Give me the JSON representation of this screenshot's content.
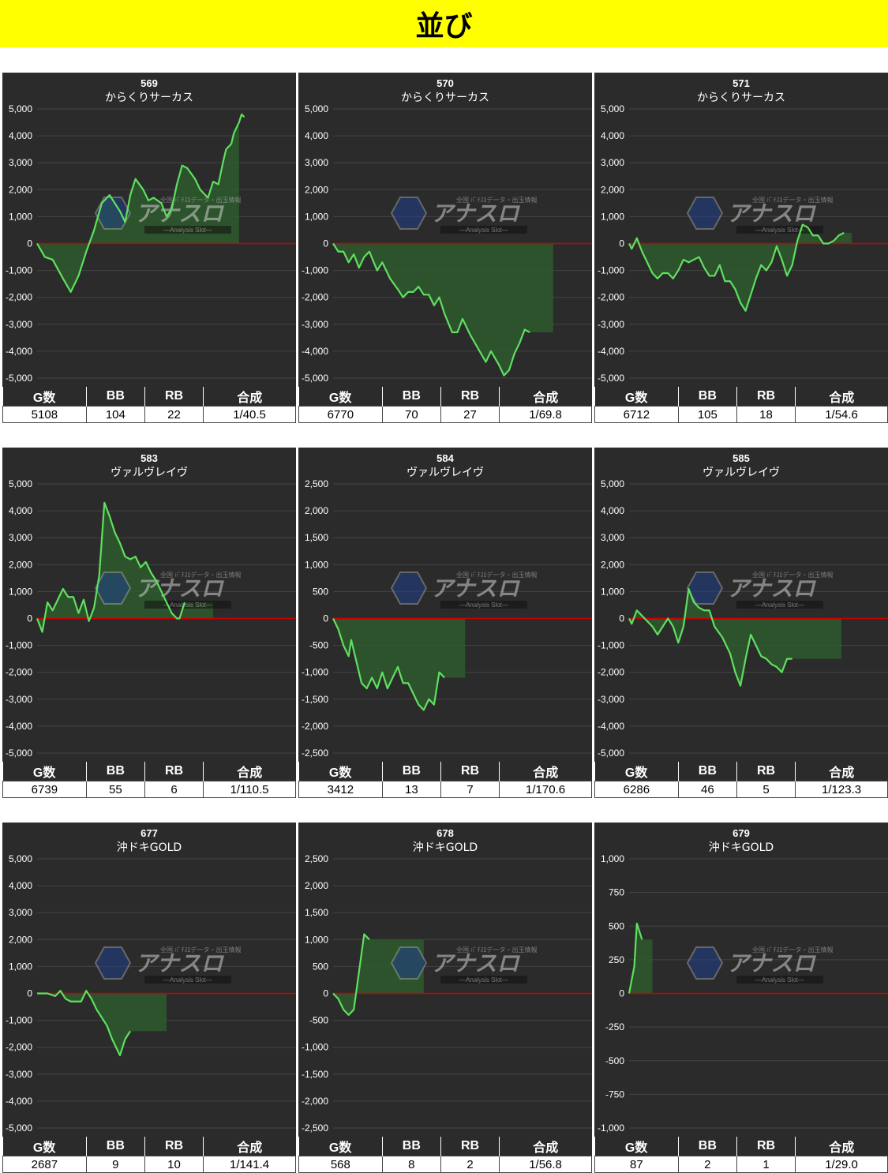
{
  "page": {
    "title": "並び"
  },
  "watermark": {
    "top_text": "全国 ﾊﾟﾁｽﾛデータ・出玉情報",
    "logo_text": "アナスロ",
    "sub_text": "—Analysis Slot—"
  },
  "colors": {
    "line": "#5ee05e",
    "fill": "#2e5a2e",
    "zero_line": "#cc0000",
    "background": "#2b2b2b",
    "grid": "#444444"
  },
  "stat_headers": [
    "G数",
    "BB",
    "RB",
    "合成"
  ],
  "chart_data": [
    {
      "type": "area",
      "machine_no": "569",
      "machine_name": "からくりサーカス",
      "ylim": [
        -5000,
        5000
      ],
      "ticks": [
        5000,
        4000,
        3000,
        2000,
        1000,
        0,
        -1000,
        -2000,
        -3000,
        -4000,
        -5000
      ],
      "tick_labels": [
        "5,000",
        "4,000",
        "3,000",
        "2,000",
        "1,000",
        "0",
        "-1,000",
        "-2,000",
        "-3,000",
        "-4,000",
        "-5,000"
      ],
      "x_end": 0.78,
      "series": [
        [
          0,
          0
        ],
        [
          0.03,
          -500
        ],
        [
          0.06,
          -600
        ],
        [
          0.1,
          -1300
        ],
        [
          0.13,
          -1800
        ],
        [
          0.16,
          -1200
        ],
        [
          0.19,
          -300
        ],
        [
          0.22,
          500
        ],
        [
          0.25,
          1500
        ],
        [
          0.28,
          1800
        ],
        [
          0.3,
          1500
        ],
        [
          0.32,
          1200
        ],
        [
          0.34,
          800
        ],
        [
          0.36,
          1800
        ],
        [
          0.38,
          2400
        ],
        [
          0.41,
          2000
        ],
        [
          0.43,
          1600
        ],
        [
          0.45,
          1700
        ],
        [
          0.48,
          1500
        ],
        [
          0.5,
          1000
        ],
        [
          0.52,
          1300
        ],
        [
          0.54,
          2200
        ],
        [
          0.56,
          2900
        ],
        [
          0.58,
          2800
        ],
        [
          0.61,
          2400
        ],
        [
          0.63,
          2000
        ],
        [
          0.65,
          1800
        ],
        [
          0.66,
          1700
        ],
        [
          0.68,
          2300
        ],
        [
          0.7,
          2200
        ],
        [
          0.72,
          3100
        ],
        [
          0.73,
          3500
        ],
        [
          0.75,
          3700
        ],
        [
          0.76,
          4100
        ],
        [
          0.78,
          4500
        ],
        [
          0.79,
          4800
        ],
        [
          0.8,
          4700
        ]
      ],
      "stats": {
        "g": "5108",
        "bb": "104",
        "rb": "22",
        "gosei": "1/40.5"
      }
    },
    {
      "type": "area",
      "machine_no": "570",
      "machine_name": "からくりサーカス",
      "ylim": [
        -5000,
        5000
      ],
      "ticks": [
        5000,
        4000,
        3000,
        2000,
        1000,
        0,
        -1000,
        -2000,
        -3000,
        -4000,
        -5000
      ],
      "tick_labels": [
        "5,000",
        "4,000",
        "3,000",
        "2,000",
        "1,000",
        "0",
        "-1,000",
        "-2,000",
        "-3,000",
        "-4,000",
        "-5,000"
      ],
      "x_end": 0.85,
      "series": [
        [
          0,
          0
        ],
        [
          0.02,
          -300
        ],
        [
          0.04,
          -300
        ],
        [
          0.06,
          -700
        ],
        [
          0.08,
          -400
        ],
        [
          0.1,
          -900
        ],
        [
          0.12,
          -500
        ],
        [
          0.14,
          -300
        ],
        [
          0.17,
          -1000
        ],
        [
          0.19,
          -700
        ],
        [
          0.22,
          -1300
        ],
        [
          0.25,
          -1700
        ],
        [
          0.27,
          -2000
        ],
        [
          0.29,
          -1800
        ],
        [
          0.31,
          -1800
        ],
        [
          0.33,
          -1600
        ],
        [
          0.35,
          -1900
        ],
        [
          0.37,
          -1900
        ],
        [
          0.39,
          -2300
        ],
        [
          0.41,
          -2000
        ],
        [
          0.43,
          -2600
        ],
        [
          0.46,
          -3300
        ],
        [
          0.48,
          -3300
        ],
        [
          0.5,
          -2800
        ],
        [
          0.53,
          -3400
        ],
        [
          0.56,
          -3900
        ],
        [
          0.59,
          -4400
        ],
        [
          0.61,
          -4000
        ],
        [
          0.64,
          -4500
        ],
        [
          0.66,
          -4900
        ],
        [
          0.68,
          -4700
        ],
        [
          0.7,
          -4100
        ],
        [
          0.72,
          -3700
        ],
        [
          0.74,
          -3200
        ],
        [
          0.76,
          -3300
        ]
      ],
      "stats": {
        "g": "6770",
        "bb": "70",
        "rb": "27",
        "gosei": "1/69.8"
      }
    },
    {
      "type": "area",
      "machine_no": "571",
      "machine_name": "からくりサーカス",
      "ylim": [
        -5000,
        5000
      ],
      "ticks": [
        5000,
        4000,
        3000,
        2000,
        1000,
        0,
        -1000,
        -2000,
        -3000,
        -4000,
        -5000
      ],
      "tick_labels": [
        "5,000",
        "4,000",
        "3,000",
        "2,000",
        "1,000",
        "0",
        "-1,000",
        "-2,000",
        "-3,000",
        "-4,000",
        "-5,000"
      ],
      "x_end": 0.86,
      "series": [
        [
          0,
          0
        ],
        [
          0.01,
          -200
        ],
        [
          0.03,
          200
        ],
        [
          0.05,
          -300
        ],
        [
          0.07,
          -700
        ],
        [
          0.09,
          -1100
        ],
        [
          0.11,
          -1300
        ],
        [
          0.13,
          -1100
        ],
        [
          0.15,
          -1100
        ],
        [
          0.17,
          -1300
        ],
        [
          0.19,
          -1000
        ],
        [
          0.21,
          -600
        ],
        [
          0.23,
          -700
        ],
        [
          0.25,
          -600
        ],
        [
          0.27,
          -500
        ],
        [
          0.29,
          -900
        ],
        [
          0.31,
          -1200
        ],
        [
          0.33,
          -1200
        ],
        [
          0.35,
          -800
        ],
        [
          0.37,
          -1400
        ],
        [
          0.39,
          -1400
        ],
        [
          0.41,
          -1700
        ],
        [
          0.43,
          -2200
        ],
        [
          0.45,
          -2500
        ],
        [
          0.47,
          -1900
        ],
        [
          0.49,
          -1300
        ],
        [
          0.51,
          -800
        ],
        [
          0.53,
          -1000
        ],
        [
          0.55,
          -700
        ],
        [
          0.57,
          -100
        ],
        [
          0.59,
          -600
        ],
        [
          0.61,
          -1200
        ],
        [
          0.63,
          -800
        ],
        [
          0.65,
          100
        ],
        [
          0.67,
          700
        ],
        [
          0.69,
          600
        ],
        [
          0.71,
          300
        ],
        [
          0.73,
          300
        ],
        [
          0.75,
          0
        ],
        [
          0.77,
          0
        ],
        [
          0.79,
          100
        ],
        [
          0.81,
          300
        ],
        [
          0.83,
          400
        ]
      ],
      "stats": {
        "g": "6712",
        "bb": "105",
        "rb": "18",
        "gosei": "1/54.6"
      }
    },
    {
      "type": "area",
      "machine_no": "583",
      "machine_name": "ヴァルヴレイヴ",
      "ylim": [
        -5000,
        5000
      ],
      "ticks": [
        5000,
        4000,
        3000,
        2000,
        1000,
        0,
        -1000,
        -2000,
        -3000,
        -4000,
        -5000
      ],
      "tick_labels": [
        "5,000",
        "4,000",
        "3,000",
        "2,000",
        "1,000",
        "0",
        "-1,000",
        "-2,000",
        "-3,000",
        "-4,000",
        "-5,000"
      ],
      "x_end": 0.68,
      "series": [
        [
          0,
          0
        ],
        [
          0.02,
          -500
        ],
        [
          0.04,
          600
        ],
        [
          0.06,
          300
        ],
        [
          0.08,
          700
        ],
        [
          0.1,
          1100
        ],
        [
          0.12,
          800
        ],
        [
          0.14,
          800
        ],
        [
          0.16,
          200
        ],
        [
          0.18,
          700
        ],
        [
          0.2,
          -100
        ],
        [
          0.22,
          400
        ],
        [
          0.24,
          1600
        ],
        [
          0.26,
          4300
        ],
        [
          0.28,
          3800
        ],
        [
          0.3,
          3200
        ],
        [
          0.32,
          2800
        ],
        [
          0.34,
          2300
        ],
        [
          0.36,
          2200
        ],
        [
          0.38,
          2300
        ],
        [
          0.4,
          1900
        ],
        [
          0.42,
          2100
        ],
        [
          0.44,
          1700
        ],
        [
          0.46,
          1400
        ],
        [
          0.48,
          1000
        ],
        [
          0.5,
          600
        ],
        [
          0.52,
          200
        ],
        [
          0.54,
          0
        ],
        [
          0.55,
          0
        ],
        [
          0.57,
          600
        ]
      ],
      "stats": {
        "g": "6739",
        "bb": "55",
        "rb": "6",
        "gosei": "1/110.5"
      }
    },
    {
      "type": "area",
      "machine_no": "584",
      "machine_name": "ヴァルヴレイヴ",
      "ylim": [
        -2500,
        2500
      ],
      "ticks": [
        2500,
        2000,
        1500,
        1000,
        500,
        0,
        -500,
        -1000,
        -1500,
        -2000,
        -2500
      ],
      "tick_labels": [
        "2,500",
        "2,000",
        "1,500",
        "1,000",
        "500",
        "0",
        "-500",
        "-1,000",
        "-1,500",
        "-2,000",
        "-2,500"
      ],
      "x_end": 0.51,
      "series": [
        [
          0,
          0
        ],
        [
          0.02,
          -200
        ],
        [
          0.04,
          -500
        ],
        [
          0.06,
          -700
        ],
        [
          0.07,
          -400
        ],
        [
          0.09,
          -800
        ],
        [
          0.11,
          -1200
        ],
        [
          0.13,
          -1300
        ],
        [
          0.15,
          -1100
        ],
        [
          0.17,
          -1300
        ],
        [
          0.19,
          -1000
        ],
        [
          0.21,
          -1300
        ],
        [
          0.23,
          -1100
        ],
        [
          0.25,
          -900
        ],
        [
          0.27,
          -1200
        ],
        [
          0.29,
          -1200
        ],
        [
          0.31,
          -1400
        ],
        [
          0.33,
          -1600
        ],
        [
          0.35,
          -1700
        ],
        [
          0.37,
          -1500
        ],
        [
          0.39,
          -1600
        ],
        [
          0.41,
          -1000
        ],
        [
          0.43,
          -1100
        ]
      ],
      "stats": {
        "g": "3412",
        "bb": "13",
        "rb": "7",
        "gosei": "1/170.6"
      }
    },
    {
      "type": "area",
      "machine_no": "585",
      "machine_name": "ヴァルヴレイヴ",
      "ylim": [
        -5000,
        5000
      ],
      "ticks": [
        5000,
        4000,
        3000,
        2000,
        1000,
        0,
        -1000,
        -2000,
        -3000,
        -4000,
        -5000
      ],
      "tick_labels": [
        "5,000",
        "4,000",
        "3,000",
        "2,000",
        "1,000",
        "0",
        "-1,000",
        "-2,000",
        "-3,000",
        "-4,000",
        "-5,000"
      ],
      "x_end": 0.82,
      "series": [
        [
          0,
          0
        ],
        [
          0.01,
          -200
        ],
        [
          0.03,
          300
        ],
        [
          0.06,
          0
        ],
        [
          0.09,
          -300
        ],
        [
          0.11,
          -600
        ],
        [
          0.13,
          -300
        ],
        [
          0.15,
          0
        ],
        [
          0.17,
          -300
        ],
        [
          0.19,
          -900
        ],
        [
          0.21,
          -300
        ],
        [
          0.23,
          1100
        ],
        [
          0.25,
          600
        ],
        [
          0.27,
          400
        ],
        [
          0.29,
          300
        ],
        [
          0.31,
          300
        ],
        [
          0.33,
          -300
        ],
        [
          0.36,
          -700
        ],
        [
          0.39,
          -1300
        ],
        [
          0.41,
          -2000
        ],
        [
          0.43,
          -2500
        ],
        [
          0.45,
          -1500
        ],
        [
          0.47,
          -600
        ],
        [
          0.49,
          -1000
        ],
        [
          0.51,
          -1400
        ],
        [
          0.53,
          -1500
        ],
        [
          0.55,
          -1700
        ],
        [
          0.57,
          -1800
        ],
        [
          0.59,
          -2000
        ],
        [
          0.61,
          -1500
        ],
        [
          0.63,
          -1500
        ]
      ],
      "stats": {
        "g": "6286",
        "bb": "46",
        "rb": "5",
        "gosei": "1/123.3"
      }
    },
    {
      "type": "area",
      "machine_no": "677",
      "machine_name": "沖ドキGOLD",
      "ylim": [
        -5000,
        5000
      ],
      "ticks": [
        5000,
        4000,
        3000,
        2000,
        1000,
        0,
        -1000,
        -2000,
        -3000,
        -4000,
        -5000
      ],
      "tick_labels": [
        "5,000",
        "4,000",
        "3,000",
        "2,000",
        "1,000",
        "0",
        "-1,000",
        "-2,000",
        "-3,000",
        "-4,000",
        "-5,000"
      ],
      "x_end": 0.5,
      "series": [
        [
          0,
          0
        ],
        [
          0.04,
          0
        ],
        [
          0.07,
          -100
        ],
        [
          0.09,
          100
        ],
        [
          0.11,
          -200
        ],
        [
          0.13,
          -300
        ],
        [
          0.15,
          -300
        ],
        [
          0.17,
          -300
        ],
        [
          0.19,
          100
        ],
        [
          0.21,
          -200
        ],
        [
          0.23,
          -600
        ],
        [
          0.25,
          -900
        ],
        [
          0.27,
          -1200
        ],
        [
          0.29,
          -1700
        ],
        [
          0.31,
          -2100
        ],
        [
          0.32,
          -2300
        ],
        [
          0.34,
          -1700
        ],
        [
          0.36,
          -1400
        ]
      ],
      "stats": {
        "g": "2687",
        "bb": "9",
        "rb": "10",
        "gosei": "1/141.4"
      }
    },
    {
      "type": "area",
      "machine_no": "678",
      "machine_name": "沖ドキGOLD",
      "ylim": [
        -2500,
        2500
      ],
      "ticks": [
        2500,
        2000,
        1500,
        1000,
        500,
        0,
        -500,
        -1000,
        -1500,
        -2000,
        -2500
      ],
      "tick_labels": [
        "2,500",
        "2,000",
        "1,500",
        "1,000",
        "500",
        "0",
        "-500",
        "-1,000",
        "-1,500",
        "-2,000",
        "-2,500"
      ],
      "x_end": 0.35,
      "series": [
        [
          0,
          0
        ],
        [
          0.02,
          -100
        ],
        [
          0.04,
          -300
        ],
        [
          0.06,
          -400
        ],
        [
          0.08,
          -300
        ],
        [
          0.1,
          400
        ],
        [
          0.12,
          1100
        ],
        [
          0.14,
          1000
        ]
      ],
      "stats": {
        "g": "568",
        "bb": "8",
        "rb": "2",
        "gosei": "1/56.8"
      }
    },
    {
      "type": "area",
      "machine_no": "679",
      "machine_name": "沖ドキGOLD",
      "ylim": [
        -1000,
        1000
      ],
      "ticks": [
        1000,
        750,
        500,
        250,
        0,
        -250,
        -500,
        -750,
        -1000
      ],
      "tick_labels": [
        "1,000",
        "750",
        "500",
        "250",
        "0",
        "-250",
        "-500",
        "-750",
        "-1,000"
      ],
      "x_end": 0.09,
      "series": [
        [
          0,
          0
        ],
        [
          0.02,
          200
        ],
        [
          0.03,
          520
        ],
        [
          0.05,
          400
        ]
      ],
      "stats": {
        "g": "87",
        "bb": "2",
        "rb": "1",
        "gosei": "1/29.0"
      }
    }
  ]
}
